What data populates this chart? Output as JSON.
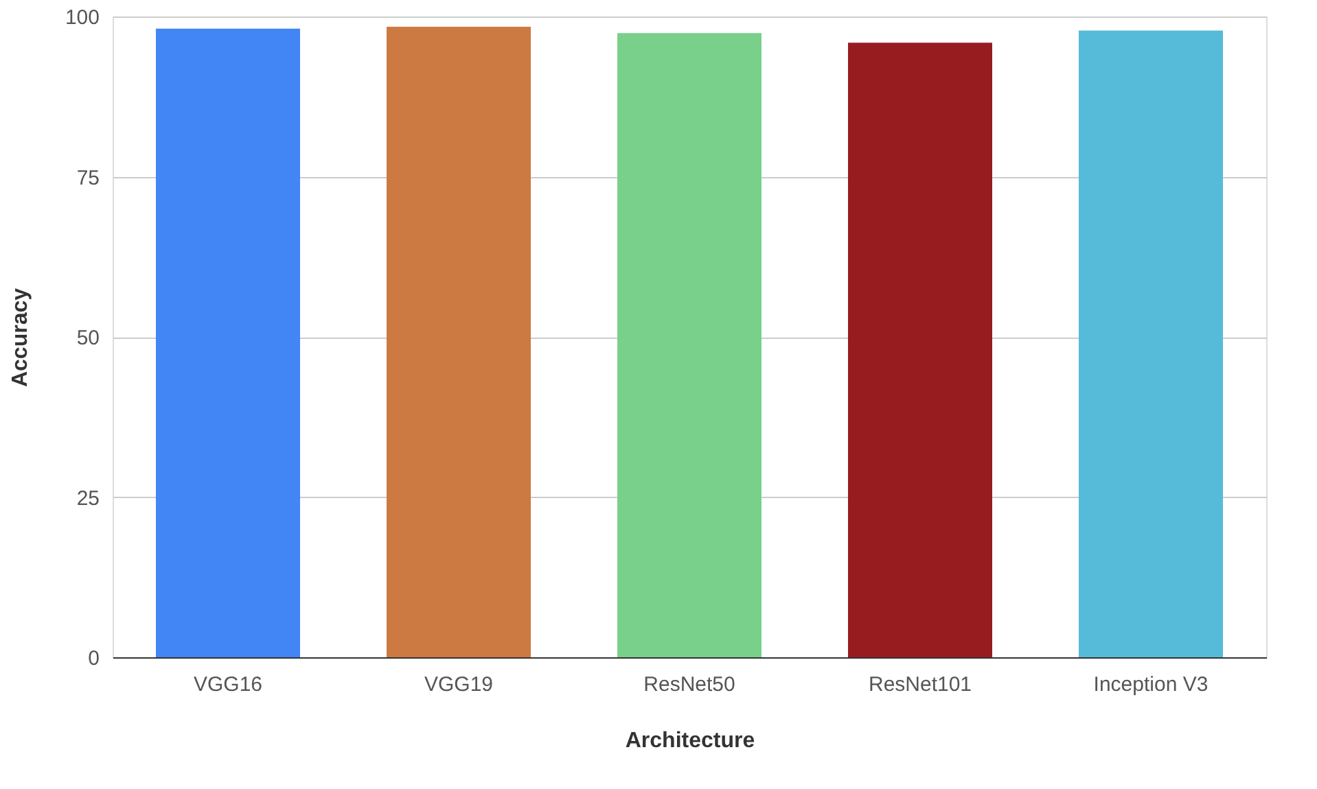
{
  "chart_data": {
    "type": "bar",
    "xlabel": "Architecture",
    "ylabel": "Accuracy",
    "categories": [
      "VGG16",
      "VGG19",
      "ResNet50",
      "ResNet101",
      "Inception V3"
    ],
    "values": [
      98.1,
      98.4,
      97.4,
      95.9,
      97.8
    ],
    "colors": [
      "#4285f4",
      "#cd7942",
      "#78d08b",
      "#971c20",
      "#55bbd8"
    ],
    "ylim": [
      0,
      100
    ],
    "yticks": [
      0,
      25,
      50,
      75,
      100
    ],
    "grid": "y",
    "legend": false
  }
}
